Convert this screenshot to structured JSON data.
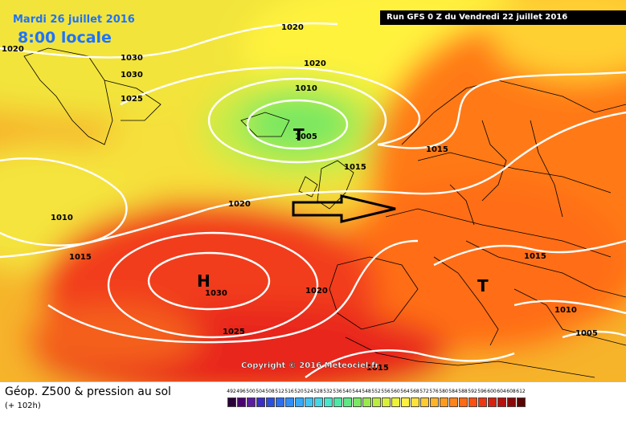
{
  "header": {
    "date": "Mardi 26 juillet 2016",
    "time": "8:00 locale",
    "run": "Run GFS 0 Z du Vendredi 22 juillet 2016"
  },
  "map": {
    "pressure_labels": [
      "1020",
      "1020",
      "1030",
      "1030",
      "1025",
      "1020",
      "1010",
      "1005",
      "1015",
      "1015",
      "1010",
      "1015",
      "1020",
      "1030",
      "1020",
      "1025",
      "1015",
      "1015",
      "1010",
      "1005"
    ],
    "high_label": "H",
    "low_labels": [
      "T",
      "T"
    ],
    "copyright": "Copyright © 2016 Meteociel.fr"
  },
  "legend": {
    "title": "Géop. Z500 & pression au sol",
    "subtitle": "(+ 102h)",
    "scale_values": [
      "492",
      "496",
      "500",
      "504",
      "508",
      "512",
      "516",
      "520",
      "524",
      "528",
      "532",
      "536",
      "540",
      "544",
      "548",
      "552",
      "556",
      "560",
      "564",
      "568",
      "572",
      "576",
      "580",
      "584",
      "588",
      "592",
      "596",
      "600",
      "604",
      "608",
      "612"
    ],
    "scale_colors": [
      "#2a0038",
      "#4a0070",
      "#5c1ca0",
      "#3a2dc8",
      "#2c4fe0",
      "#2a6ef2",
      "#2f8ef8",
      "#35aaf8",
      "#3ec6f4",
      "#44d8e6",
      "#48e6cc",
      "#4ee8a6",
      "#5ee884",
      "#7ae860",
      "#9aea4a",
      "#bcec3e",
      "#daf038",
      "#eef23a",
      "#fff23e",
      "#ffe23a",
      "#ffcc30",
      "#ffb428",
      "#ff9c20",
      "#ff841a",
      "#ff6a14",
      "#ff5010",
      "#f0360e",
      "#d8200e",
      "#b8100c",
      "#8c0808",
      "#5c0404"
    ]
  },
  "colors": {
    "brand_text": "#1e73ff",
    "contour": "#ffffff",
    "land_border": "#000000"
  }
}
